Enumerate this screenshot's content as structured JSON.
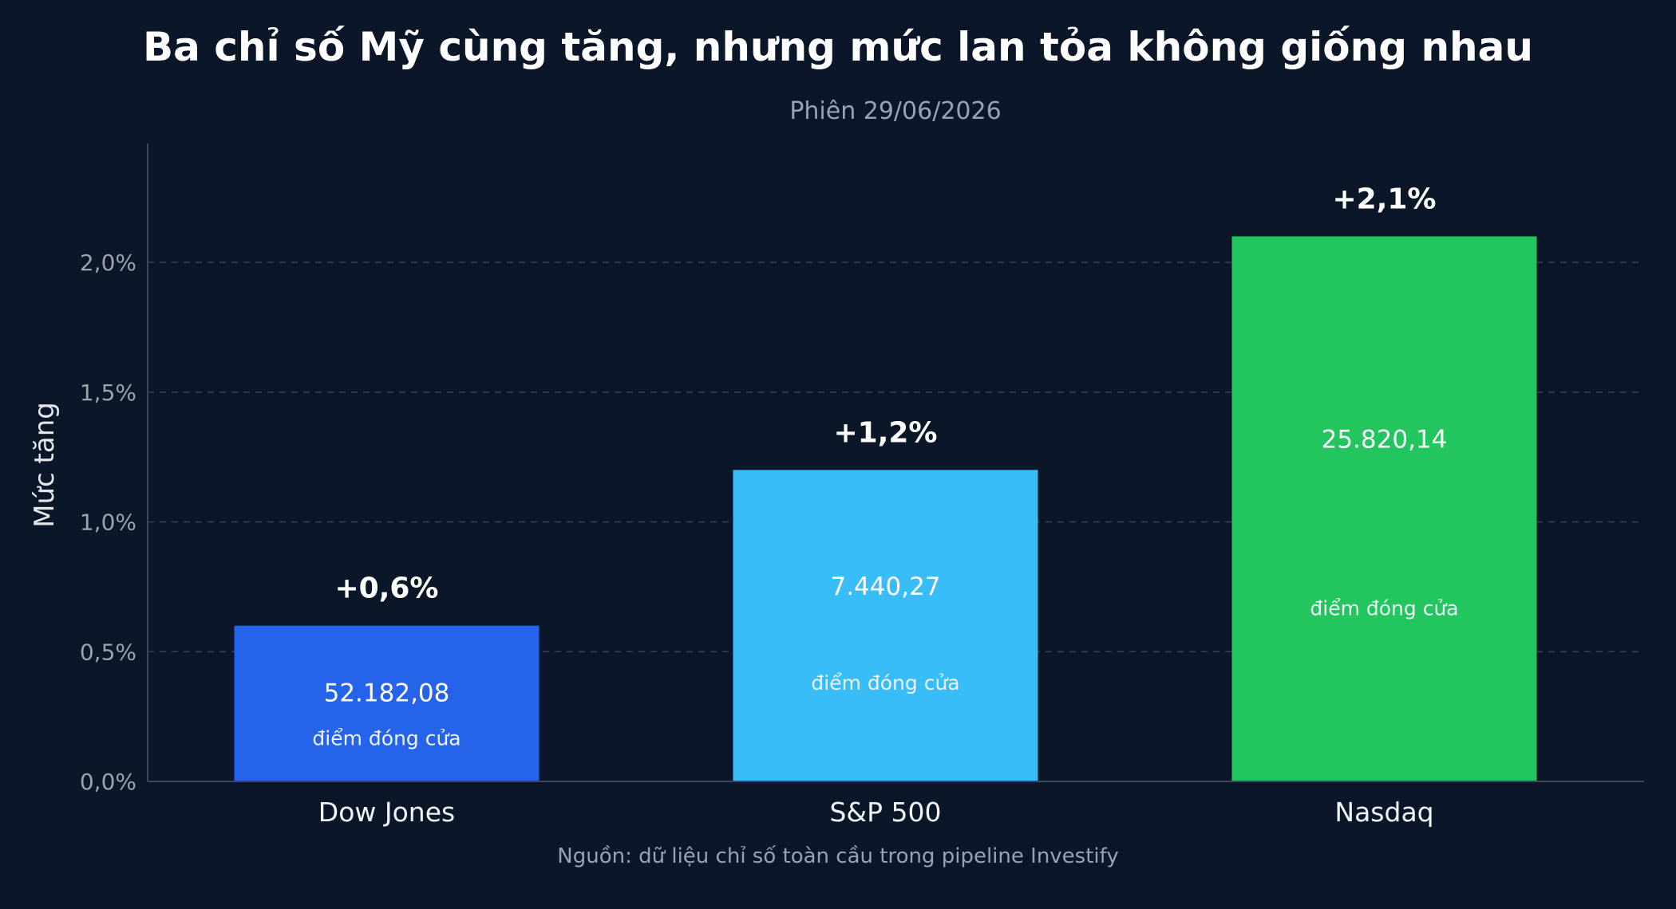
{
  "chart_data": {
    "type": "bar",
    "title": "Ba chỉ số Mỹ cùng tăng, nhưng mức lan tỏa không giống nhau",
    "subtitle": "Phiên 29/06/2026",
    "ylabel": "Mức tăng",
    "xlabel": "",
    "ylim": [
      0,
      2.4
    ],
    "yticks": [
      0,
      0.5,
      1.0,
      1.5,
      2.0
    ],
    "ytick_labels": [
      "0,0%",
      "0,5%",
      "1,0%",
      "1,5%",
      "2,0%"
    ],
    "grid": true,
    "categories": [
      "Dow Jones",
      "S&P 500",
      "Nasdaq"
    ],
    "values": [
      0.6,
      1.2,
      2.1
    ],
    "value_labels": [
      "+0,6%",
      "+1,2%",
      "+2,1%"
    ],
    "close_values": [
      "52.182,08",
      "7.440,27",
      "25.820,14"
    ],
    "close_note": "điểm đóng cửa",
    "colors": [
      "#2563eb",
      "#38bdf8",
      "#22c55e"
    ],
    "source": "Nguồn: dữ liệu chỉ số toàn cầu trong pipeline Investify"
  }
}
